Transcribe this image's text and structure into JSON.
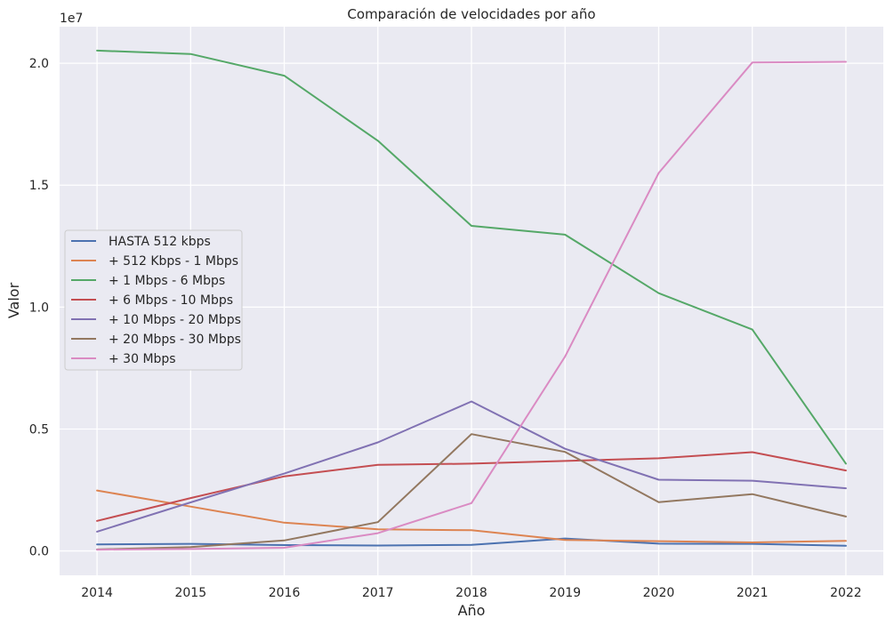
{
  "chart_data": {
    "type": "line",
    "title": "Comparación de velocidades por año",
    "xlabel": "Año",
    "ylabel": "Valor",
    "y_offset_label": "1e7",
    "x": [
      2014,
      2015,
      2016,
      2017,
      2018,
      2019,
      2020,
      2021,
      2022
    ],
    "xlim": [
      2013.6,
      2022.4
    ],
    "ylim": [
      -1000000,
      21500000
    ],
    "y_ticks": [
      0,
      5000000,
      10000000,
      15000000,
      20000000
    ],
    "y_tick_labels": [
      "0.0",
      "0.5",
      "1.0",
      "1.5",
      "2.0"
    ],
    "grid": true,
    "legend_position": "center-left",
    "background": "#eaeaf2",
    "series": [
      {
        "name": "HASTA 512 kbps",
        "color": "#4c72b0",
        "values": [
          270000,
          290000,
          240000,
          220000,
          250000,
          510000,
          300000,
          290000,
          210000
        ]
      },
      {
        "name": "+ 512 Kbps - 1 Mbps",
        "color": "#dd8452",
        "values": [
          2480000,
          1820000,
          1160000,
          890000,
          850000,
          450000,
          400000,
          350000,
          410000
        ]
      },
      {
        "name": "+ 1 Mbps - 6 Mbps",
        "color": "#55a868",
        "values": [
          20520000,
          20380000,
          19490000,
          16820000,
          13330000,
          12970000,
          10570000,
          9080000,
          3580000
        ]
      },
      {
        "name": "+ 6 Mbps - 10 Mbps",
        "color": "#c44e52",
        "values": [
          1230000,
          2170000,
          3060000,
          3530000,
          3580000,
          3690000,
          3800000,
          4050000,
          3300000
        ]
      },
      {
        "name": "+ 10 Mbps - 20 Mbps",
        "color": "#8172b3",
        "values": [
          790000,
          1990000,
          3170000,
          4450000,
          6130000,
          4190000,
          2920000,
          2880000,
          2570000
        ]
      },
      {
        "name": "+ 20 Mbps - 30 Mbps",
        "color": "#937860",
        "values": [
          60000,
          160000,
          430000,
          1180000,
          4790000,
          4060000,
          2000000,
          2330000,
          1410000
        ]
      },
      {
        "name": "+ 30 Mbps",
        "color": "#da8bc3",
        "values": [
          50000,
          80000,
          130000,
          730000,
          1960000,
          7970000,
          15500000,
          20030000,
          20060000
        ]
      }
    ]
  }
}
